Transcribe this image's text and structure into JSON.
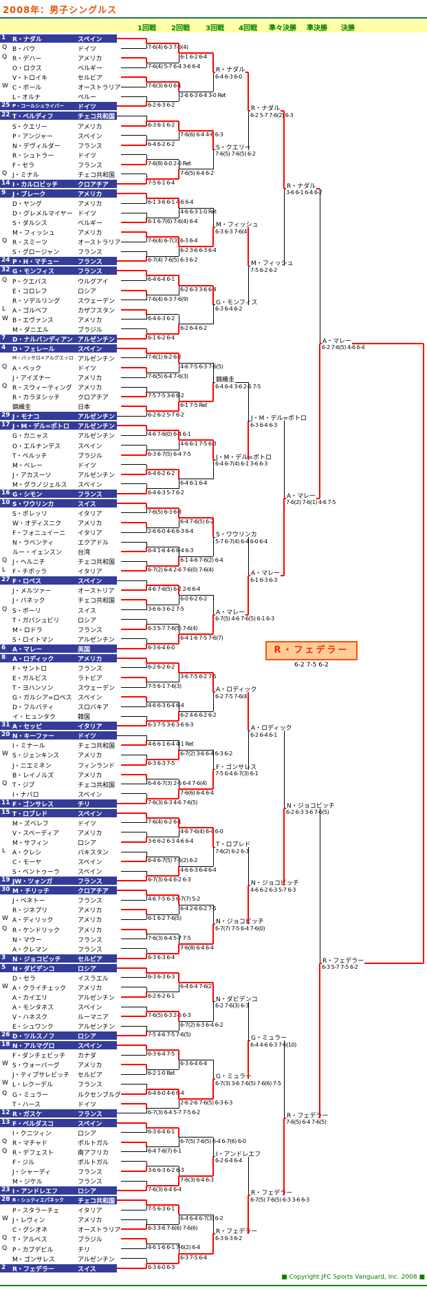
{
  "title": "2008年：男子シングルス",
  "round_headers": [
    "1回戦",
    "2回戦",
    "3回戦",
    "4回戦",
    "準々決勝",
    "準決勝",
    "決勝"
  ],
  "copyright": "■ Copyright JFC Sports Vanguard, Inc. 2008 ■",
  "colors": {
    "title": "#e55300",
    "rule_green": "#1c7a1c",
    "band_yellow": "#ffffa6",
    "header_text_green": "#008000",
    "seed_bar_blue": "#333d99",
    "line_red": "#ff0000",
    "line_black": "#000000",
    "champion_border": "#ff4d00",
    "champion_bg": "#ffcc99",
    "champion_text": "#ef2b00"
  },
  "players": [
    {
      "mark": "",
      "seed": "1",
      "name": "R・ナダル",
      "country": "スペイン"
    },
    {
      "mark": "Q",
      "seed": "",
      "name": "B・バウ",
      "country": "ドイツ"
    },
    {
      "mark": "Q",
      "seed": "",
      "name": "R・デハー",
      "country": "アメリカ"
    },
    {
      "mark": "",
      "seed": "",
      "name": "O・ロクス",
      "country": "ベルギー"
    },
    {
      "mark": "",
      "seed": "",
      "name": "V・トロイキ",
      "country": "セルビア"
    },
    {
      "mark": "W",
      "seed": "",
      "name": "C・ボール",
      "country": "オーストラリア"
    },
    {
      "mark": "",
      "seed": "",
      "name": "L・オルナ",
      "country": "ペルー"
    },
    {
      "mark": "",
      "seed": "25",
      "name": "P・コールシュライバー",
      "country": "ドイツ"
    },
    {
      "mark": "",
      "seed": "22",
      "name": "T・ベルディフ",
      "country": "チェコ共和国"
    },
    {
      "mark": "",
      "seed": "",
      "name": "S・クエリー",
      "country": "アメリカ"
    },
    {
      "mark": "",
      "seed": "",
      "name": "P・アンジャー",
      "country": "スペイン"
    },
    {
      "mark": "",
      "seed": "",
      "name": "N・デヴィルダー",
      "country": "フランス"
    },
    {
      "mark": "",
      "seed": "",
      "name": "R・シュトラー",
      "country": "ドイツ"
    },
    {
      "mark": "",
      "seed": "",
      "name": "F・セラ",
      "country": "フランス"
    },
    {
      "mark": "Q",
      "seed": "",
      "name": "J・ミナル",
      "country": "チェコ共和国"
    },
    {
      "mark": "",
      "seed": "14",
      "name": "I・カルロビッチ",
      "country": "クロアチア"
    },
    {
      "mark": "",
      "seed": "9",
      "name": "J・ブレーク",
      "country": "アメリカ"
    },
    {
      "mark": "",
      "seed": "",
      "name": "D・ヤング",
      "country": "アメリカ"
    },
    {
      "mark": "",
      "seed": "",
      "name": "D・グレメルマイヤー",
      "country": "ドイツ"
    },
    {
      "mark": "",
      "seed": "",
      "name": "S・ダルシス",
      "country": "ベルギー"
    },
    {
      "mark": "",
      "seed": "",
      "name": "M・フィッシュ",
      "country": "アメリカ"
    },
    {
      "mark": "Q",
      "seed": "",
      "name": "R・スミーツ",
      "country": "オーストラリア"
    },
    {
      "mark": "",
      "seed": "",
      "name": "S・グロージャン",
      "country": "フランス"
    },
    {
      "mark": "",
      "seed": "24",
      "name": "P・H・マチュー",
      "country": "フランス"
    },
    {
      "mark": "",
      "seed": "32",
      "name": "G・モンフィス",
      "country": "フランス"
    },
    {
      "mark": "Q",
      "seed": "",
      "name": "P・クエバス",
      "country": "ウルグアイ"
    },
    {
      "mark": "",
      "seed": "",
      "name": "E・コロレフ",
      "country": "ロシア"
    },
    {
      "mark": "",
      "seed": "",
      "name": "R・ソデルリング",
      "country": "スウェーデン"
    },
    {
      "mark": "L",
      "seed": "",
      "name": "A・ゴルベフ",
      "country": "カザフスタン"
    },
    {
      "mark": "W",
      "seed": "",
      "name": "B・エヴァンス",
      "country": "アメリカ"
    },
    {
      "mark": "",
      "seed": "",
      "name": "M・ダニエル",
      "country": "ブラジル"
    },
    {
      "mark": "",
      "seed": "7",
      "name": "D・ナルバンディアン",
      "country": "アルゼンチン"
    },
    {
      "mark": "",
      "seed": "4",
      "name": "D・フェレール",
      "country": "スペイン"
    },
    {
      "mark": "",
      "seed": "",
      "name": "M・バッサロ=アルグエッロ",
      "country": "アルゼンチン"
    },
    {
      "mark": "Q",
      "seed": "",
      "name": "A・ベック",
      "country": "ドイツ"
    },
    {
      "mark": "",
      "seed": "",
      "name": "J・アイズナー",
      "country": "アメリカ"
    },
    {
      "mark": "Q",
      "seed": "",
      "name": "R・スウィーティング",
      "country": "アメリカ"
    },
    {
      "mark": "",
      "seed": "",
      "name": "R・カラヌシッチ",
      "country": "クロアチア"
    },
    {
      "mark": "",
      "seed": "",
      "name": "錦織圭",
      "country": "日本"
    },
    {
      "mark": "",
      "seed": "29",
      "name": "J・モナコ",
      "country": "アルゼンチン"
    },
    {
      "mark": "",
      "seed": "17",
      "name": "J・M・デル=ポトロ",
      "country": "アルゼンチン"
    },
    {
      "mark": "",
      "seed": "",
      "name": "G・カニャス",
      "country": "アルゼンチン"
    },
    {
      "mark": "",
      "seed": "",
      "name": "O・エルナンデス",
      "country": "スペイン"
    },
    {
      "mark": "",
      "seed": "",
      "name": "T・ベルッチ",
      "country": "ブラジル"
    },
    {
      "mark": "",
      "seed": "",
      "name": "M・ベレー",
      "country": "ドイツ"
    },
    {
      "mark": "",
      "seed": "",
      "name": "J・アカスーソ",
      "country": "アルゼンチン"
    },
    {
      "mark": "",
      "seed": "",
      "name": "M・グラノジェルス",
      "country": "スペイン"
    },
    {
      "mark": "",
      "seed": "16",
      "name": "G・シモン",
      "country": "フランス"
    },
    {
      "mark": "",
      "seed": "10",
      "name": "S・ワウリンカ",
      "country": "スイス"
    },
    {
      "mark": "",
      "seed": "",
      "name": "S・ボレッリ",
      "country": "イタリア"
    },
    {
      "mark": "",
      "seed": "",
      "name": "W・オディスニク",
      "country": "アメリカ"
    },
    {
      "mark": "",
      "seed": "",
      "name": "F・フォニュイーニ",
      "country": "イタリア"
    },
    {
      "mark": "",
      "seed": "",
      "name": "N・ラベンティ",
      "country": "エクアドル"
    },
    {
      "mark": "",
      "seed": "",
      "name": "ルー・イェンスン",
      "country": "台湾"
    },
    {
      "mark": "Q",
      "seed": "",
      "name": "J・ヘルニチ",
      "country": "チェコ共和国"
    },
    {
      "mark": "L",
      "seed": "",
      "name": "F・チポッラ",
      "country": "イタリア"
    },
    {
      "mark": "",
      "seed": "27",
      "name": "F・ロペス",
      "country": "スペイン"
    },
    {
      "mark": "",
      "seed": "",
      "name": "J・メルツァー",
      "country": "オーストリア"
    },
    {
      "mark": "",
      "seed": "",
      "name": "J・バネック",
      "country": "チェコ共和国"
    },
    {
      "mark": "Q",
      "seed": "",
      "name": "S・ボーリ",
      "country": "スイス"
    },
    {
      "mark": "",
      "seed": "",
      "name": "T・ガバシュビリ",
      "country": "ロシア"
    },
    {
      "mark": "",
      "seed": "",
      "name": "M・ロドラ",
      "country": "フランス"
    },
    {
      "mark": "",
      "seed": "",
      "name": "S・ロイトマン",
      "country": "アルゼンチン"
    },
    {
      "mark": "",
      "seed": "6",
      "name": "A・マレー",
      "country": "英国"
    },
    {
      "mark": "",
      "seed": "8",
      "name": "A・ロディック",
      "country": "アメリカ"
    },
    {
      "mark": "",
      "seed": "",
      "name": "F・サントロ",
      "country": "フランス"
    },
    {
      "mark": "",
      "seed": "",
      "name": "E・ガルビス",
      "country": "ラトビア"
    },
    {
      "mark": "",
      "seed": "",
      "name": "T・ヨハンソン",
      "country": "スウェーデン"
    },
    {
      "mark": "",
      "seed": "",
      "name": "G・ガルシア=ロペス",
      "country": "スペイン"
    },
    {
      "mark": "",
      "seed": "",
      "name": "D・フルバティ",
      "country": "スロバキア"
    },
    {
      "mark": "",
      "seed": "",
      "name": "イ・ヒュンタク",
      "country": "韓国"
    },
    {
      "mark": "",
      "seed": "31",
      "name": "A・セッピ",
      "country": "イタリア"
    },
    {
      "mark": "",
      "seed": "20",
      "name": "N・キーファー",
      "country": "ドイツ"
    },
    {
      "mark": "",
      "seed": "",
      "name": "I・ミナール",
      "country": "チェコ共和国"
    },
    {
      "mark": "W",
      "seed": "",
      "name": "S・ジェンキンス",
      "country": "アメリカ"
    },
    {
      "mark": "",
      "seed": "",
      "name": "J・ニエミネン",
      "country": "フィンランド"
    },
    {
      "mark": "",
      "seed": "",
      "name": "B・レイノルズ",
      "country": "アメリカ"
    },
    {
      "mark": "Q",
      "seed": "",
      "name": "T・ジブ",
      "country": "チェコ共和国"
    },
    {
      "mark": "",
      "seed": "",
      "name": "I・ナバロ",
      "country": "スペイン"
    },
    {
      "mark": "",
      "seed": "11",
      "name": "F・ゴンサレス",
      "country": "チリ"
    },
    {
      "mark": "",
      "seed": "15",
      "name": "T・ロブレド",
      "country": "スペイン"
    },
    {
      "mark": "",
      "seed": "",
      "name": "M・ズベレフ",
      "country": "ドイツ"
    },
    {
      "mark": "",
      "seed": "",
      "name": "V・スペーディア",
      "country": "アメリカ"
    },
    {
      "mark": "",
      "seed": "",
      "name": "M・サフィン",
      "country": "ロシア"
    },
    {
      "mark": "L",
      "seed": "",
      "name": "A・クレシ",
      "country": "パキスタン"
    },
    {
      "mark": "",
      "seed": "",
      "name": "C・モーヤ",
      "country": "スペイン"
    },
    {
      "mark": "",
      "seed": "",
      "name": "S・ベントゥーラ",
      "country": "スペイン"
    },
    {
      "mark": "",
      "seed": "19",
      "name": "JW・ツォンガ",
      "country": "フランス"
    },
    {
      "mark": "",
      "seed": "30",
      "name": "M・チリッチ",
      "country": "クロアチア"
    },
    {
      "mark": "",
      "seed": "",
      "name": "J・ベネトー",
      "country": "フランス"
    },
    {
      "mark": "",
      "seed": "",
      "name": "R・ジネプリ",
      "country": "アメリカ"
    },
    {
      "mark": "W",
      "seed": "",
      "name": "A・ディリック",
      "country": "アメリカ"
    },
    {
      "mark": "Q",
      "seed": "",
      "name": "R・ケンドリック",
      "country": "アメリカ"
    },
    {
      "mark": "",
      "seed": "",
      "name": "N・マウー",
      "country": "フランス"
    },
    {
      "mark": "",
      "seed": "",
      "name": "A・クレマン",
      "country": "フランス"
    },
    {
      "mark": "",
      "seed": "3",
      "name": "N・ジョコビッチ",
      "country": "セルビア"
    },
    {
      "mark": "",
      "seed": "5",
      "name": "N・ダビデンコ",
      "country": "ロシア"
    },
    {
      "mark": "",
      "seed": "",
      "name": "D・セラ",
      "country": "イスラエル"
    },
    {
      "mark": "W",
      "seed": "",
      "name": "A・クライチェック",
      "country": "アメリカ"
    },
    {
      "mark": "",
      "seed": "",
      "name": "A・カイエリ",
      "country": "アルゼンチン"
    },
    {
      "mark": "",
      "seed": "",
      "name": "A・モンタネス",
      "country": "スペイン"
    },
    {
      "mark": "",
      "seed": "",
      "name": "V・ハネスク",
      "country": "ルーマニア"
    },
    {
      "mark": "",
      "seed": "",
      "name": "E・シュワンク",
      "country": "アルゼンチン"
    },
    {
      "mark": "",
      "seed": "26",
      "name": "D・ツルスノフ",
      "country": "ロシア"
    },
    {
      "mark": "",
      "seed": "18",
      "name": "N・アルマグロ",
      "country": "スペイン"
    },
    {
      "mark": "",
      "seed": "",
      "name": "F・ダンチェビッチ",
      "country": "カナダ"
    },
    {
      "mark": "W",
      "seed": "",
      "name": "S・ウォーバーグ",
      "country": "アメリカ"
    },
    {
      "mark": "",
      "seed": "",
      "name": "J・ティプサレビッチ",
      "country": "セルビア"
    },
    {
      "mark": "W",
      "seed": "",
      "name": "L・レクーデル",
      "country": "フランス"
    },
    {
      "mark": "Q",
      "seed": "",
      "name": "G・ミュラー",
      "country": "ルクセンブルグ"
    },
    {
      "mark": "",
      "seed": "",
      "name": "T・ハース",
      "country": "ドイツ"
    },
    {
      "mark": "",
      "seed": "12",
      "name": "R・ガスケ",
      "country": "フランス"
    },
    {
      "mark": "",
      "seed": "13",
      "name": "F・ベルダスコ",
      "country": "スペイン"
    },
    {
      "mark": "",
      "seed": "",
      "name": "I・クニツィン",
      "country": "ロシア"
    },
    {
      "mark": "Q",
      "seed": "",
      "name": "R・マチャド",
      "country": "ポルトガル"
    },
    {
      "mark": "Q",
      "seed": "",
      "name": "R・デフェスト",
      "country": "南アフリカ"
    },
    {
      "mark": "",
      "seed": "",
      "name": "F・ジル",
      "country": "ポルトガル"
    },
    {
      "mark": "",
      "seed": "",
      "name": "J・シャーディ",
      "country": "フランス"
    },
    {
      "mark": "",
      "seed": "",
      "name": "M・ジケル",
      "country": "フランス"
    },
    {
      "mark": "",
      "seed": "23",
      "name": "I・アンドレエフ",
      "country": "ロシア"
    },
    {
      "mark": "",
      "seed": "28",
      "name": "R・シュティエパネック",
      "country": "チェコ共和国"
    },
    {
      "mark": "",
      "seed": "",
      "name": "P・スタラーチェ",
      "country": "イタリア"
    },
    {
      "mark": "W",
      "seed": "",
      "name": "J・レヴィン",
      "country": "アメリカ"
    },
    {
      "mark": "",
      "seed": "",
      "name": "C・グシオネ",
      "country": "オーストラリア"
    },
    {
      "mark": "Q",
      "seed": "",
      "name": "T・アルベス",
      "country": "ブラジル"
    },
    {
      "mark": "Q",
      "seed": "",
      "name": "P・カプデビル",
      "country": "チリ"
    },
    {
      "mark": "",
      "seed": "",
      "name": "M・ゴンサレス",
      "country": "アルゼンチン"
    },
    {
      "mark": "",
      "seed": "2",
      "name": "R・フェデラー",
      "country": "スイス"
    }
  ],
  "bracket": {
    "r1_scores": [
      "7-6(4) 6-3 7-6(4)",
      "7-6(4) 5-7 6-4 3-6 6-4",
      "7-6(3) 6-0 6-1",
      "6-2 6-3 6-2",
      "6-3 6-1 6-2",
      "6-4 6-2 6-2",
      "7-6(8) 6-0 2-0 Ret",
      "7-5 6-1 6-4",
      "6-1 3-6 6-1 4-6 6-4",
      "6-1 6-7(6) 7-6(4) 6-4",
      "7-6(4) 6-7(3) 6-3 6-4",
      "6-7(4) 7-6(5) 6-3 6-2",
      "6-4 6-4 6-1",
      "7-6(4) 6-3 7-6(9)",
      "6-4 6-3 6-2",
      "6-1 6-2 6-4",
      "7-6(1) 6-2 6-2",
      "7-6(5) 6-4 7-6(3)",
      "7-5 7-5 3-6 6-2",
      "6-2 6-2 5-7 6-2",
      "4-6 7-6(0) 6-4 6-1",
      "6-3 6-7(5) 6-4 7-5",
      "6-4 6-2 6-2",
      "6-4 6-3 5-7 6-2",
      "7-6(5) 6-3 6-3",
      "2-6 6-0 4-6 6-3 6-4",
      "6-4 1-6 4-6 6-4 6-3",
      "6-7(2) 6-4 2-6 7-6(0) 7-6(4)",
      "4-6 7-6(5) 6-2 2-6 6-4",
      "3-6 6-3 6-2 7-5",
      "6-3 5-7 7-6(5) 7-6(4)",
      "6-3 6-4 6-0",
      "6-2 6-2 6-2",
      "7-5 6-1 7-6(3)",
      "4-6 6-3 6-4 6-4",
      "6-3 7-5 3-6 3-6 6-3",
      "4-6 6-1 6-4 4-1 Ret",
      "6-3 6-3 7-5",
      "6-4 6-7(3) 2-6 6-4 7-6(4)",
      "7-6(3) 6-3 4-6 7-6(5)",
      "7-6(4) 6-2 6-1",
      "3-6 6-2 6-3 4-6 6-4",
      "6-4 6-7(5) 7-6(2) 6-2",
      "6-7(3) 6-4 6-2 6-3",
      "4-6 7-5 6-3 6-7(7) 5-2",
      "6-1 6-2 7-6(5)",
      "7-6(3) 6-4 5-7 7-5",
      "6-3 6-3 6-4",
      "6-3 6-3 6-3",
      "6-2 6-2 6-1",
      "7-6(5) 6-3 2-6 6-3",
      "7-5 4-6 7-5 7-6(5)",
      "6-3 6-4 7-5",
      "6-2 1-0 Ret",
      "6-4 6-0 4-6 6-4",
      "6-7(3) 6-4 5-7 7-5 6-2",
      "6-3 6-4 6-1",
      "6-4 7-6(7) 6-1",
      "3-6 6-3 6-2 6-3",
      "7-6(3) 6-4 6-4",
      "7-5 6-3 6-1",
      "6-3 3-6 7-6(6) 7-6(6)",
      "4-6 1-6 6-1 7-6(2) 6-4",
      "6-3 6-0 6-3"
    ],
    "r1_winners": [
      0,
      0,
      0,
      1,
      1,
      1,
      1,
      1,
      0,
      1,
      0,
      1,
      0,
      0,
      0,
      1,
      0,
      0,
      1,
      0,
      0,
      1,
      1,
      1,
      0,
      0,
      1,
      1,
      1,
      0,
      1,
      1,
      0,
      0,
      0,
      1,
      1,
      1,
      0,
      1,
      0,
      1,
      1,
      1,
      0,
      0,
      0,
      1,
      0,
      1,
      1,
      1,
      0,
      0,
      1,
      0,
      0,
      0,
      1,
      1,
      0,
      1,
      0,
      1
    ],
    "r2_scores": [
      "6-1 6-2 6-4",
      "2-6 6-3 6-4 3-0 Ret",
      "7-6(6) 6-4 4-6 6-3",
      "7-6(5) 6-4 6-2",
      "4-6 6-3 1-0 Ret",
      "6-2 3-6 6-3 6-4",
      "6-2 6-3 3-6 6-4",
      "6-2 6-4 6-2",
      "4-6 7-5 6-3 7-6(5)",
      "6-1 7-5 Ret",
      "4-6 6-1 7-5 6-3",
      "6-4 6-1 6-4",
      "6-4 7-6(5) 6-2",
      "6-1 4-6 7-6(2) 6-4",
      "6-0 6-2 6-2",
      "6-4 1-6 7-5 7-6(7)",
      "3-6 7-5 6-2 7-5",
      "6-2 4-6 6-2 6-2",
      "6-7(2) 3-6 6-4 6-3 6-2",
      "7-6(6) 6-4 6-4",
      "4-6 7-6(4) 6-4 6-0",
      "4-6 6-3 6-4 6-4",
      "6-4 2-6 6-2 7-5",
      "7-6(8) 6-4 6-4",
      "6-4 6-4 7-6(2)",
      "6-7(2) 6-3 6-4 6-2",
      "6-3 6-4 6-4",
      "2-6 2-6 7-6(5) 6-3 6-3",
      "6-7(5) 7-6(5) 6-4 6-7(6) 6-0",
      "7-6(3) 6-4 6-3",
      "6-4 6-4 6-7(3) 6-2",
      "6-3 7-5 6-4"
    ],
    "r2_winners": [
      0,
      0,
      0,
      1,
      0,
      0,
      0,
      1,
      0,
      1,
      0,
      0,
      0,
      1,
      0,
      1,
      0,
      1,
      1,
      1,
      0,
      1,
      0,
      1,
      0,
      0,
      0,
      0,
      0,
      1,
      0,
      1
    ],
    "r3": [
      {
        "name": "R・ナダル",
        "score": "6-4 6-3 6-0"
      },
      {
        "name": "S・クエリー",
        "score": "7-6(5) 7-6(5) 6-2"
      },
      {
        "name": "M・フィッシュ",
        "score": "6-3 6-3 7-6(4)"
      },
      {
        "name": "G・モンフィス",
        "score": "6-3 6-4 6-2"
      },
      {
        "name": "錦織圭",
        "score": "6-4 6-4 3-6 2-6 7-5"
      },
      {
        "name": "J・M・デル=ポトロ",
        "score": "6-4 6-7(4) 6-1 3-6 6-3"
      },
      {
        "name": "S・ワウリンカ",
        "score": "5-7 6-7(4) 6-4 6-0 6-4"
      },
      {
        "name": "A・マレー",
        "score": "6-7(5) 4-6 7-6(5) 6-1 6-3"
      },
      {
        "name": "A・ロディック",
        "score": "6-2 7-5 7-6(4)"
      },
      {
        "name": "F・ゴンサレス",
        "score": "7-5 6-4 6-7(3) 6-1"
      },
      {
        "name": "T・ロブレド",
        "score": "7-6(2) 6-2 6-3"
      },
      {
        "name": "N・ジョコビッチ",
        "score": "6-7(7) 7-5 6-4 7-6(0)"
      },
      {
        "name": "N・ダビデンコ",
        "score": "6-2 7-6(3) 6-3"
      },
      {
        "name": "G・ミュラー",
        "score": "6-7(3) 3-6 7-6(5) 7-6(6) 7-5"
      },
      {
        "name": "I・アンドレエフ",
        "score": "6-2 6-4 6-4"
      },
      {
        "name": "R・フェデラー",
        "score": "6-3 6-3 6-2"
      }
    ],
    "r3_winners": [
      0,
      0,
      1,
      0,
      1,
      0,
      0,
      1,
      0,
      1,
      0,
      1,
      0,
      1,
      1,
      1
    ],
    "r4": [
      {
        "name": "R・ナダル",
        "score": "6-2 5-7 7-6(2) 6-3"
      },
      {
        "name": "M・フィッシュ",
        "score": "7-5 6-2 6-2"
      },
      {
        "name": "J・M・デル=ポトロ",
        "score": "6-3 6-4 6-3"
      },
      {
        "name": "A・マレー",
        "score": "6-1 6-3 6-3"
      },
      {
        "name": "A・ロディック",
        "score": "6-2 6-4 6-1"
      },
      {
        "name": "N・ジョコビッチ",
        "score": "4-6 6-2 6-3 5-7 6-3"
      },
      {
        "name": "G・ミュラー",
        "score": "6-4 4-6 6-3 7-6(10)"
      },
      {
        "name": "R・フェデラー",
        "score": "6-7(5) 7-6(5) 6-3 3-6 6-3"
      }
    ],
    "r4_winners": [
      0,
      0,
      1,
      1,
      0,
      1,
      1,
      1
    ],
    "qf": [
      {
        "name": "R・ナダル",
        "score": "3-6 6-1 6-4 6-2"
      },
      {
        "name": "A・マレー",
        "score": "7-6(2) 7-6(1) 4-6 7-5"
      },
      {
        "name": "N・ジョコビッチ",
        "score": "6-2 6-3 3-6 7-6(5)"
      },
      {
        "name": "R・フェデラー",
        "score": "7-6(5) 6-4 7-6(5)"
      }
    ],
    "qf_winners": [
      0,
      1,
      1,
      1
    ],
    "sf": [
      {
        "name": "A・マレー",
        "score": "6-2 7-6(5) 4-6 6-4"
      },
      {
        "name": "R・フェデラー",
        "score": "6-3 5-7 7-5 6-2"
      }
    ],
    "sf_winners": [
      1,
      1
    ],
    "final": {
      "winner": "R・フェデラー",
      "score": "6-2 7-5 6-2",
      "winner_side": 1
    }
  }
}
